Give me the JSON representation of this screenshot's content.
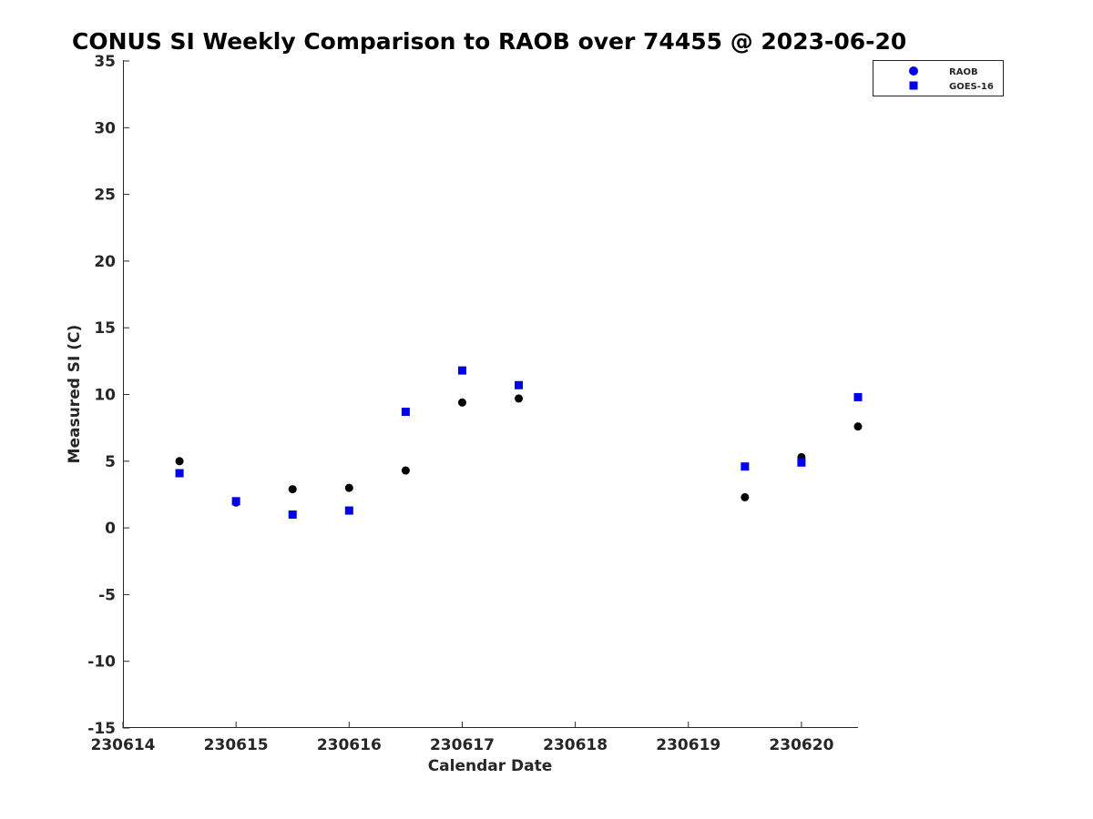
{
  "chart_data": {
    "type": "scatter",
    "title": "CONUS SI Weekly Comparison to RAOB over 74455 @ 2023-06-20",
    "xlabel": "Calendar Date",
    "ylabel": "Measured SI (C)",
    "xlim": [
      0,
      6.5
    ],
    "ylim": [
      -15,
      35
    ],
    "x_ticks": [
      {
        "value": 0,
        "label": "230614"
      },
      {
        "value": 1,
        "label": "230615"
      },
      {
        "value": 2,
        "label": "230616"
      },
      {
        "value": 3,
        "label": "230617"
      },
      {
        "value": 4,
        "label": "230618"
      },
      {
        "value": 5,
        "label": "230619"
      },
      {
        "value": 6,
        "label": "230620"
      }
    ],
    "y_ticks": [
      {
        "value": 35,
        "label": "35"
      },
      {
        "value": 30,
        "label": "30"
      },
      {
        "value": 25,
        "label": "25"
      },
      {
        "value": 20,
        "label": "20"
      },
      {
        "value": 15,
        "label": "15"
      },
      {
        "value": 10,
        "label": "10"
      },
      {
        "value": 5,
        "label": "5"
      },
      {
        "value": 0,
        "label": "0"
      },
      {
        "value": -5,
        "label": "-5"
      },
      {
        "value": -10,
        "label": "-10"
      },
      {
        "value": -15,
        "label": "-15"
      }
    ],
    "grid": false,
    "legend": "top-right",
    "series": [
      {
        "name": "RAOB",
        "marker": "circle",
        "color": "#000000",
        "legend_color": "#0000ee",
        "points": [
          {
            "x": 0.5,
            "y": 5.0
          },
          {
            "x": 1.0,
            "y": 1.9
          },
          {
            "x": 1.5,
            "y": 2.9
          },
          {
            "x": 2.0,
            "y": 3.0
          },
          {
            "x": 2.5,
            "y": 4.3
          },
          {
            "x": 3.0,
            "y": 9.4
          },
          {
            "x": 3.5,
            "y": 9.7
          },
          {
            "x": 5.5,
            "y": 2.3
          },
          {
            "x": 6.0,
            "y": 5.3
          },
          {
            "x": 6.5,
            "y": 7.6
          }
        ]
      },
      {
        "name": "GOES-16",
        "marker": "square",
        "color": "#0000ee",
        "legend_color": "#0000ee",
        "points": [
          {
            "x": 0.5,
            "y": 4.1
          },
          {
            "x": 1.0,
            "y": 2.0
          },
          {
            "x": 1.5,
            "y": 1.0
          },
          {
            "x": 2.0,
            "y": 1.3
          },
          {
            "x": 2.5,
            "y": 8.7
          },
          {
            "x": 3.0,
            "y": 11.8
          },
          {
            "x": 3.5,
            "y": 10.7
          },
          {
            "x": 5.5,
            "y": 4.6
          },
          {
            "x": 6.0,
            "y": 4.9
          },
          {
            "x": 6.5,
            "y": 9.8
          }
        ]
      }
    ]
  }
}
